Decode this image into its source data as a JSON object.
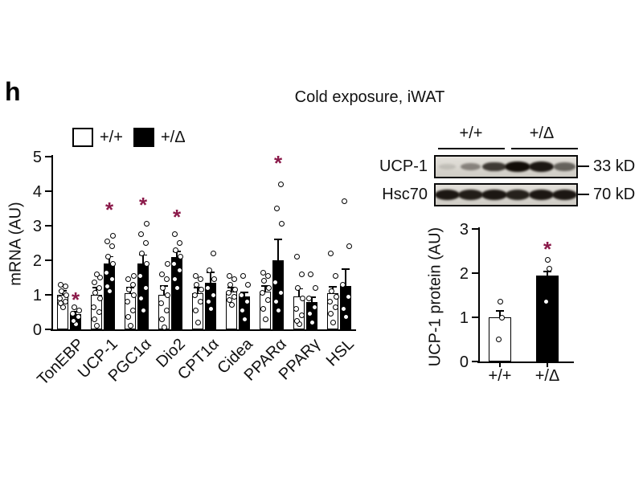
{
  "panel_label": "h",
  "title": "Cold exposure, iWAT",
  "legend": [
    {
      "label": "+/+",
      "fill": "#ffffff"
    },
    {
      "label": "+/Δ",
      "fill": "#000000"
    }
  ],
  "colors": {
    "significance": "#8b1a4a",
    "axis": "#000000",
    "blot_bg_top": "#e4e1db",
    "blot_bg_bottom": "#cfccc5",
    "band": "18,13,8"
  },
  "chart_data": [
    {
      "id": "mrna",
      "type": "bar",
      "title": "",
      "xlabel": "",
      "ylabel": "mRNA (AU)",
      "ylim": [
        0,
        5
      ],
      "yticks": [
        0,
        1,
        2,
        3,
        4,
        5
      ],
      "grid": false,
      "legend_position": "top-left",
      "categories": [
        "TonEBP",
        "UCP-1",
        "PGC1α",
        "Dio2",
        "CPT1α",
        "Cidea",
        "PPARα",
        "PPARγ",
        "HSL"
      ],
      "series": [
        {
          "name": "+/+",
          "fill": "#ffffff",
          "means": [
            1.0,
            1.0,
            1.05,
            1.0,
            1.05,
            1.1,
            1.1,
            0.95,
            1.05
          ],
          "errors": [
            0.12,
            0.2,
            0.15,
            0.25,
            0.15,
            0.1,
            0.15,
            0.22,
            0.18
          ],
          "points": [
            [
              0.65,
              0.75,
              0.8,
              0.9,
              1.0,
              1.1,
              1.25,
              1.3
            ],
            [
              0.1,
              0.3,
              0.5,
              0.65,
              0.9,
              1.05,
              1.2,
              1.35,
              1.5,
              1.6
            ],
            [
              0.1,
              0.35,
              0.55,
              0.8,
              1.0,
              1.15,
              1.3,
              1.45,
              1.55
            ],
            [
              0.05,
              0.3,
              0.55,
              0.75,
              1.0,
              1.2,
              1.45,
              1.6,
              1.9
            ],
            [
              0.2,
              0.55,
              0.8,
              1.0,
              1.15,
              1.3,
              1.45,
              1.55
            ],
            [
              0.7,
              0.85,
              0.95,
              1.05,
              1.15,
              1.3,
              1.45,
              1.55
            ],
            [
              0.3,
              0.6,
              0.85,
              1.05,
              1.2,
              1.4,
              1.55,
              1.65
            ],
            [
              0.15,
              0.25,
              0.4,
              0.6,
              0.9,
              1.2,
              1.6,
              2.1
            ],
            [
              0.2,
              0.45,
              0.65,
              0.8,
              0.95,
              1.1,
              1.55,
              2.2
            ]
          ]
        },
        {
          "name": "+/Δ",
          "fill": "#000000",
          "means": [
            0.45,
            1.9,
            1.9,
            2.1,
            1.35,
            0.95,
            2.0,
            0.8,
            1.25
          ],
          "errors": [
            0.06,
            0.2,
            0.25,
            0.15,
            0.3,
            0.12,
            0.6,
            0.12,
            0.5
          ],
          "points": [
            [
              0.15,
              0.25,
              0.35,
              0.45,
              0.55,
              0.65
            ],
            [
              1.1,
              1.25,
              1.45,
              1.65,
              1.9,
              2.1,
              2.4,
              2.55,
              2.7
            ],
            [
              0.55,
              0.9,
              1.2,
              1.55,
              1.9,
              2.2,
              2.5,
              2.75,
              3.05
            ],
            [
              1.2,
              1.45,
              1.7,
              1.9,
              2.1,
              2.3,
              2.5,
              2.75
            ],
            [
              0.6,
              0.8,
              1.0,
              1.2,
              1.45,
              1.7,
              2.2
            ],
            [
              0.3,
              0.55,
              0.8,
              1.0,
              1.3,
              1.55
            ],
            [
              0.55,
              0.8,
              1.05,
              1.35,
              3.05,
              3.5,
              4.2
            ],
            [
              0.2,
              0.45,
              0.65,
              0.9,
              1.2,
              1.6
            ],
            [
              0.35,
              0.6,
              0.95,
              1.3,
              2.4,
              3.7
            ]
          ]
        }
      ],
      "significance": [
        {
          "category": "TonEBP",
          "y": 0.95
        },
        {
          "category": "UCP-1",
          "y": 3.55
        },
        {
          "category": "PGC1α",
          "y": 3.7
        },
        {
          "category": "Dio2",
          "y": 3.35
        },
        {
          "category": "PPARα",
          "y": 4.9
        }
      ]
    },
    {
      "id": "ucp1-protein",
      "type": "bar",
      "title": "",
      "xlabel": "",
      "ylabel": "UCP-1 protein (AU)",
      "ylim": [
        0,
        3
      ],
      "yticks": [
        0,
        1,
        2,
        3
      ],
      "grid": false,
      "categories": [
        "+/+",
        "+/Δ"
      ],
      "series": [
        {
          "name": "UCP-1 protein",
          "fills": [
            "#ffffff",
            "#000000"
          ],
          "means": [
            1.0,
            1.95
          ],
          "errors": [
            0.15,
            0.08
          ],
          "points": [
            [
              0.5,
              1.0,
              1.35
            ],
            [
              1.35,
              2.1,
              2.3
            ]
          ]
        }
      ],
      "significance": [
        {
          "category": "+/Δ",
          "y": 2.62
        }
      ]
    }
  ],
  "western_blot": {
    "group_labels": [
      "+/+",
      "+/Δ"
    ],
    "lanes_per_group": 3,
    "rows": [
      {
        "label": "UCP-1",
        "marker": "33 kD",
        "bands": [
          0.12,
          0.42,
          0.78,
          1.0,
          0.95,
          0.58
        ]
      },
      {
        "label": "Hsc70",
        "marker": "70 kD",
        "bands": [
          0.95,
          0.92,
          0.95,
          0.9,
          0.95,
          0.95
        ]
      }
    ]
  }
}
